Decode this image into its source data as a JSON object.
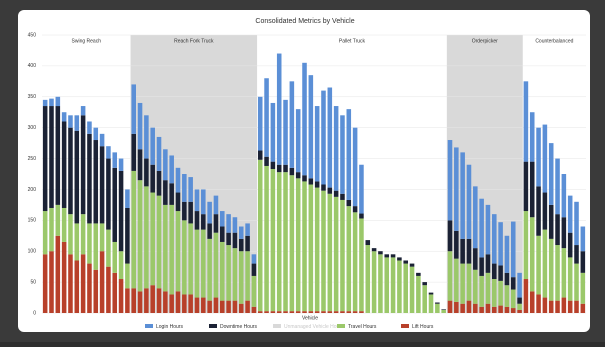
{
  "chart_data": {
    "type": "grouped-stacked-bar",
    "title": "Consolidated Metrics by Vehicle",
    "x_label": "Vehicle",
    "ylim": [
      0,
      450
    ],
    "yticks": [
      0,
      50,
      100,
      150,
      200,
      250,
      300,
      350,
      400,
      450
    ],
    "grid": true,
    "groups": [
      "Swing Reach",
      "Reach Fork Truck",
      "Pallet Truck",
      "Orderpicker",
      "Counterbalanced"
    ],
    "series": [
      {
        "name": "Login Hours",
        "color": "#5b8fd6",
        "values": [
          [
            10,
            12,
            15,
            15,
            20,
            25,
            15,
            20,
            20,
            20,
            20,
            25,
            20,
            30
          ],
          [
            80,
            75,
            70,
            60,
            55,
            50,
            45,
            40,
            45,
            40,
            35,
            40,
            35,
            30,
            25,
            30,
            25,
            20,
            20,
            15
          ],
          [
            87,
            127,
            95,
            180,
            105,
            140,
            102,
            182,
            167,
            122,
            152,
            162,
            137,
            127,
            147,
            127,
            79,
            0,
            0,
            0,
            0,
            0,
            0,
            0,
            0,
            0,
            0,
            0,
            0,
            0
          ],
          [
            130,
            135,
            140,
            120,
            100,
            95,
            80,
            80,
            70,
            60,
            90,
            40
          ],
          [
            130,
            80,
            95,
            110,
            100,
            90,
            70,
            60,
            70,
            40
          ]
        ]
      },
      {
        "name": "Downtime Hours",
        "color": "#1b2235",
        "values": [
          [
            170,
            165,
            160,
            140,
            140,
            150,
            160,
            145,
            135,
            125,
            115,
            120,
            130,
            90
          ],
          [
            60,
            50,
            45,
            45,
            40,
            40,
            35,
            30,
            30,
            35,
            30,
            25,
            25,
            30,
            25,
            20,
            25,
            20,
            25,
            20
          ],
          [
            15,
            15,
            12,
            12,
            12,
            12,
            10,
            10,
            10,
            10,
            10,
            10,
            10,
            10,
            10,
            10,
            8,
            8,
            5,
            5,
            5,
            5,
            5,
            5,
            5,
            5,
            5,
            3,
            2,
            1
          ],
          [
            50,
            45,
            40,
            40,
            35,
            30,
            30,
            25,
            25,
            20,
            20,
            10
          ],
          [
            80,
            90,
            80,
            60,
            55,
            50,
            50,
            40,
            30,
            35
          ]
        ]
      },
      {
        "name": "Unmanaged Vehicle Hours",
        "color": "#d9d9d9"
      },
      {
        "name": "Travel Hours",
        "color": "#9bc86a",
        "values": [
          [
            70,
            70,
            50,
            55,
            65,
            60,
            65,
            65,
            75,
            45,
            60,
            50,
            45,
            40
          ],
          [
            190,
            180,
            165,
            150,
            150,
            140,
            145,
            130,
            120,
            115,
            110,
            110,
            100,
            105,
            95,
            90,
            85,
            85,
            80,
            50
          ],
          [
            245,
            235,
            230,
            225,
            225,
            220,
            215,
            210,
            205,
            200,
            195,
            190,
            185,
            180,
            170,
            160,
            150,
            110,
            100,
            95,
            90,
            90,
            85,
            80,
            75,
            60,
            45,
            30,
            15,
            5
          ],
          [
            80,
            70,
            65,
            60,
            55,
            50,
            50,
            45,
            40,
            35,
            30,
            10
          ],
          [
            110,
            120,
            95,
            110,
            100,
            90,
            80,
            70,
            60,
            50
          ]
        ]
      },
      {
        "name": "Lift Hours",
        "color": "#b8402a",
        "values": [
          [
            95,
            100,
            125,
            115,
            95,
            85,
            95,
            80,
            70,
            100,
            75,
            65,
            55,
            40
          ],
          [
            40,
            35,
            40,
            45,
            40,
            35,
            30,
            35,
            30,
            30,
            25,
            25,
            20,
            25,
            20,
            20,
            20,
            15,
            20,
            10
          ],
          [
            3,
            3,
            3,
            3,
            3,
            3,
            3,
            3,
            3,
            3,
            3,
            3,
            3,
            3,
            3,
            3,
            3,
            0,
            0,
            0,
            0,
            0,
            0,
            0,
            0,
            0,
            0,
            0,
            0,
            0
          ],
          [
            20,
            18,
            15,
            20,
            15,
            10,
            15,
            10,
            12,
            10,
            8,
            5
          ],
          [
            55,
            35,
            30,
            25,
            20,
            20,
            25,
            20,
            20,
            15
          ]
        ]
      }
    ]
  }
}
